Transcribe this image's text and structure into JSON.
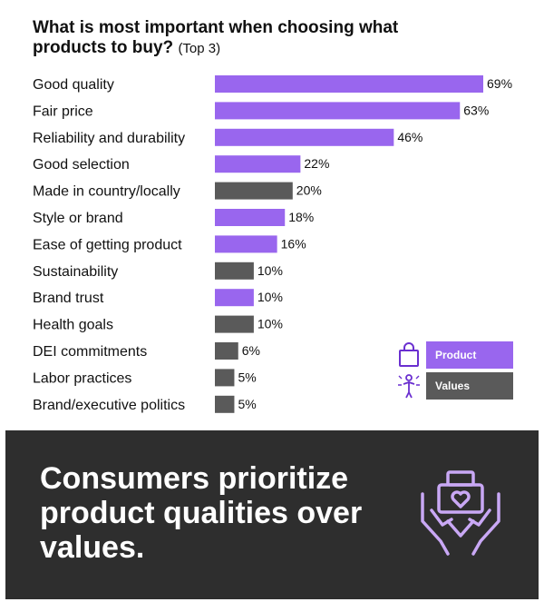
{
  "header": {
    "title": "What is most important when choosing what products to buy?",
    "subtitle": "(Top 3)"
  },
  "chart_data": {
    "type": "bar",
    "orientation": "horizontal",
    "categories": [
      "Good quality",
      "Fair price",
      "Reliability and durability",
      "Good selection",
      "Made in country/locally",
      "Style or brand",
      "Ease of getting product",
      "Sustainability",
      "Brand trust",
      "Health goals",
      "DEI commitments",
      "Labor practices",
      "Brand/executive politics"
    ],
    "values": [
      69,
      63,
      46,
      22,
      20,
      18,
      16,
      10,
      10,
      10,
      6,
      5,
      5
    ],
    "value_labels": [
      "69%",
      "63%",
      "46%",
      "22%",
      "20%",
      "18%",
      "16%",
      "10%",
      "10%",
      "10%",
      "6%",
      "5%",
      "5%"
    ],
    "groups": [
      "Product",
      "Product",
      "Product",
      "Product",
      "Values",
      "Product",
      "Product",
      "Values",
      "Product",
      "Values",
      "Values",
      "Values",
      "Values"
    ],
    "unit": "%",
    "xlim": [
      0,
      69
    ],
    "grid": false,
    "legend_position": "bottom-right"
  },
  "legend": {
    "items": [
      {
        "label": "Product",
        "color": "#9966ee",
        "icon": "shopping-bag-icon"
      },
      {
        "label": "Values",
        "color": "#5a5a5a",
        "icon": "person-values-icon"
      }
    ]
  },
  "colors": {
    "product": "#9966ee",
    "values": "#5a5a5a",
    "banner_background": "#2e2e2e",
    "icon_accent": "#c9a8f5"
  },
  "banner": {
    "text": "Consumers prioritize product qualities over values.",
    "icon": "hands-holding-box-heart-icon"
  }
}
